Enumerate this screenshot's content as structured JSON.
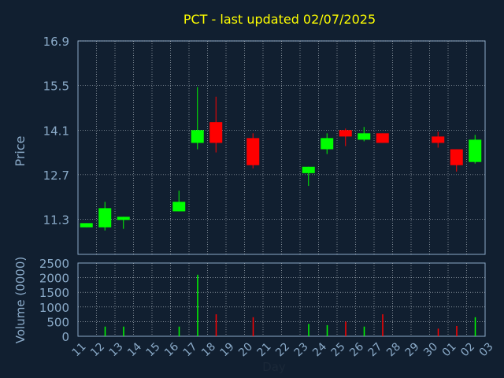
{
  "chart_data": {
    "type": "candlestick",
    "title": "PCT - last updated 02/07/2025",
    "xlabel": "Day",
    "ylabel_price": "Price",
    "ylabel_volume": "Volume (0000)",
    "price_ticks": [
      "16.9",
      "15.5",
      "14.1",
      "12.7",
      "11.3"
    ],
    "volume_ticks": [
      "2500",
      "2000",
      "1500",
      "1000",
      "500",
      "0"
    ],
    "x_tick_labels": [
      "11",
      "12",
      "13",
      "14",
      "15",
      "16",
      "17",
      "18",
      "19",
      "20",
      "21",
      "22",
      "23",
      "24",
      "25",
      "26",
      "27",
      "28",
      "29",
      "30",
      "01",
      "02",
      "03"
    ],
    "price_ylim": [
      10.2,
      16.9
    ],
    "volume_ylim": [
      0,
      2500
    ],
    "grid": true,
    "colors": {
      "background": "#111f30",
      "up": "#00ff00",
      "down": "#ff0000",
      "title": "#ffff00",
      "axis_text": "#8aaac8",
      "frame": "#8aaac8"
    },
    "candles": [
      {
        "day": "11",
        "open": 11.05,
        "close": 11.18,
        "high": 11.18,
        "low": 11.05,
        "volume": 0
      },
      {
        "day": "12",
        "open": 11.05,
        "close": 11.65,
        "high": 11.85,
        "low": 10.95,
        "volume": 330
      },
      {
        "day": "13",
        "open": 11.3,
        "close": 11.38,
        "high": 11.38,
        "low": 11.0,
        "volume": 330
      },
      {
        "day": "16",
        "open": 11.55,
        "close": 11.85,
        "high": 12.2,
        "low": 11.55,
        "volume": 330
      },
      {
        "day": "17",
        "open": 13.7,
        "close": 14.1,
        "high": 15.45,
        "low": 13.5,
        "volume": 2100
      },
      {
        "day": "18",
        "open": 14.35,
        "close": 13.7,
        "high": 15.15,
        "low": 13.4,
        "volume": 750
      },
      {
        "day": "20",
        "open": 13.85,
        "close": 13.0,
        "high": 14.0,
        "low": 12.9,
        "volume": 650
      },
      {
        "day": "23",
        "open": 12.75,
        "close": 12.95,
        "high": 12.95,
        "low": 12.35,
        "volume": 420
      },
      {
        "day": "24",
        "open": 13.5,
        "close": 13.85,
        "high": 14.0,
        "low": 13.35,
        "volume": 380
      },
      {
        "day": "25",
        "open": 14.1,
        "close": 13.9,
        "high": 14.15,
        "low": 13.6,
        "volume": 500
      },
      {
        "day": "26",
        "open": 13.8,
        "close": 14.0,
        "high": 14.2,
        "low": 13.75,
        "volume": 330
      },
      {
        "day": "27",
        "open": 14.0,
        "close": 13.7,
        "high": 14.0,
        "low": 13.7,
        "volume": 750
      },
      {
        "day": "30",
        "open": 13.9,
        "close": 13.7,
        "high": 14.05,
        "low": 13.55,
        "volume": 260
      },
      {
        "day": "01",
        "open": 13.5,
        "close": 13.0,
        "high": 13.5,
        "low": 12.8,
        "volume": 350
      },
      {
        "day": "02",
        "open": 13.1,
        "close": 13.8,
        "high": 13.95,
        "low": 13.05,
        "volume": 650
      }
    ]
  }
}
